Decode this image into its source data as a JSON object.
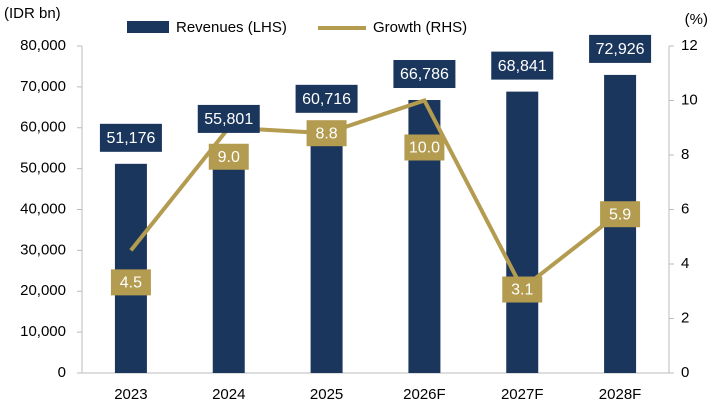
{
  "chart_data": {
    "type": "bar_line",
    "y_label": "(IDR bn)",
    "y2_label": "(%)",
    "categories": [
      "2023",
      "2024",
      "2025",
      "2026F",
      "2027F",
      "2028F"
    ],
    "series": [
      {
        "name": "Revenues (LHS)",
        "color": "#1b365d",
        "values": [
          51176,
          55801,
          60716,
          66786,
          68841,
          72926
        ],
        "value_labels": [
          "51,176",
          "55,801",
          "60,716",
          "66,786",
          "68,841",
          "72,926"
        ]
      },
      {
        "name": "Growth (RHS)",
        "color": "#b39b50",
        "axis": "y2",
        "values": [
          4.5,
          9,
          8.8,
          10,
          3.1,
          5.9
        ],
        "value_labels": [
          "4.5",
          "9.0",
          "8.8",
          "10.0",
          "3.1",
          "5.9"
        ]
      }
    ],
    "ylim": [
      0,
      80000
    ],
    "yticks": [
      0,
      {
        "value": 10000,
        "label": "10,000"
      },
      {
        "value": 20000,
        "label": "20,000"
      },
      {
        "value": 30000,
        "label": "30,000"
      },
      {
        "value": 40000,
        "label": "40,000"
      },
      {
        "value": 50000,
        "label": "50,000"
      },
      {
        "value": 60000,
        "label": "60,000"
      },
      {
        "value": 70000,
        "label": "70,000"
      },
      {
        "value": 80000,
        "label": "80,000"
      }
    ],
    "y2lim": [
      0,
      12
    ],
    "y2ticks": [
      0,
      2,
      4,
      6,
      8,
      10,
      12
    ],
    "legend": "top"
  }
}
